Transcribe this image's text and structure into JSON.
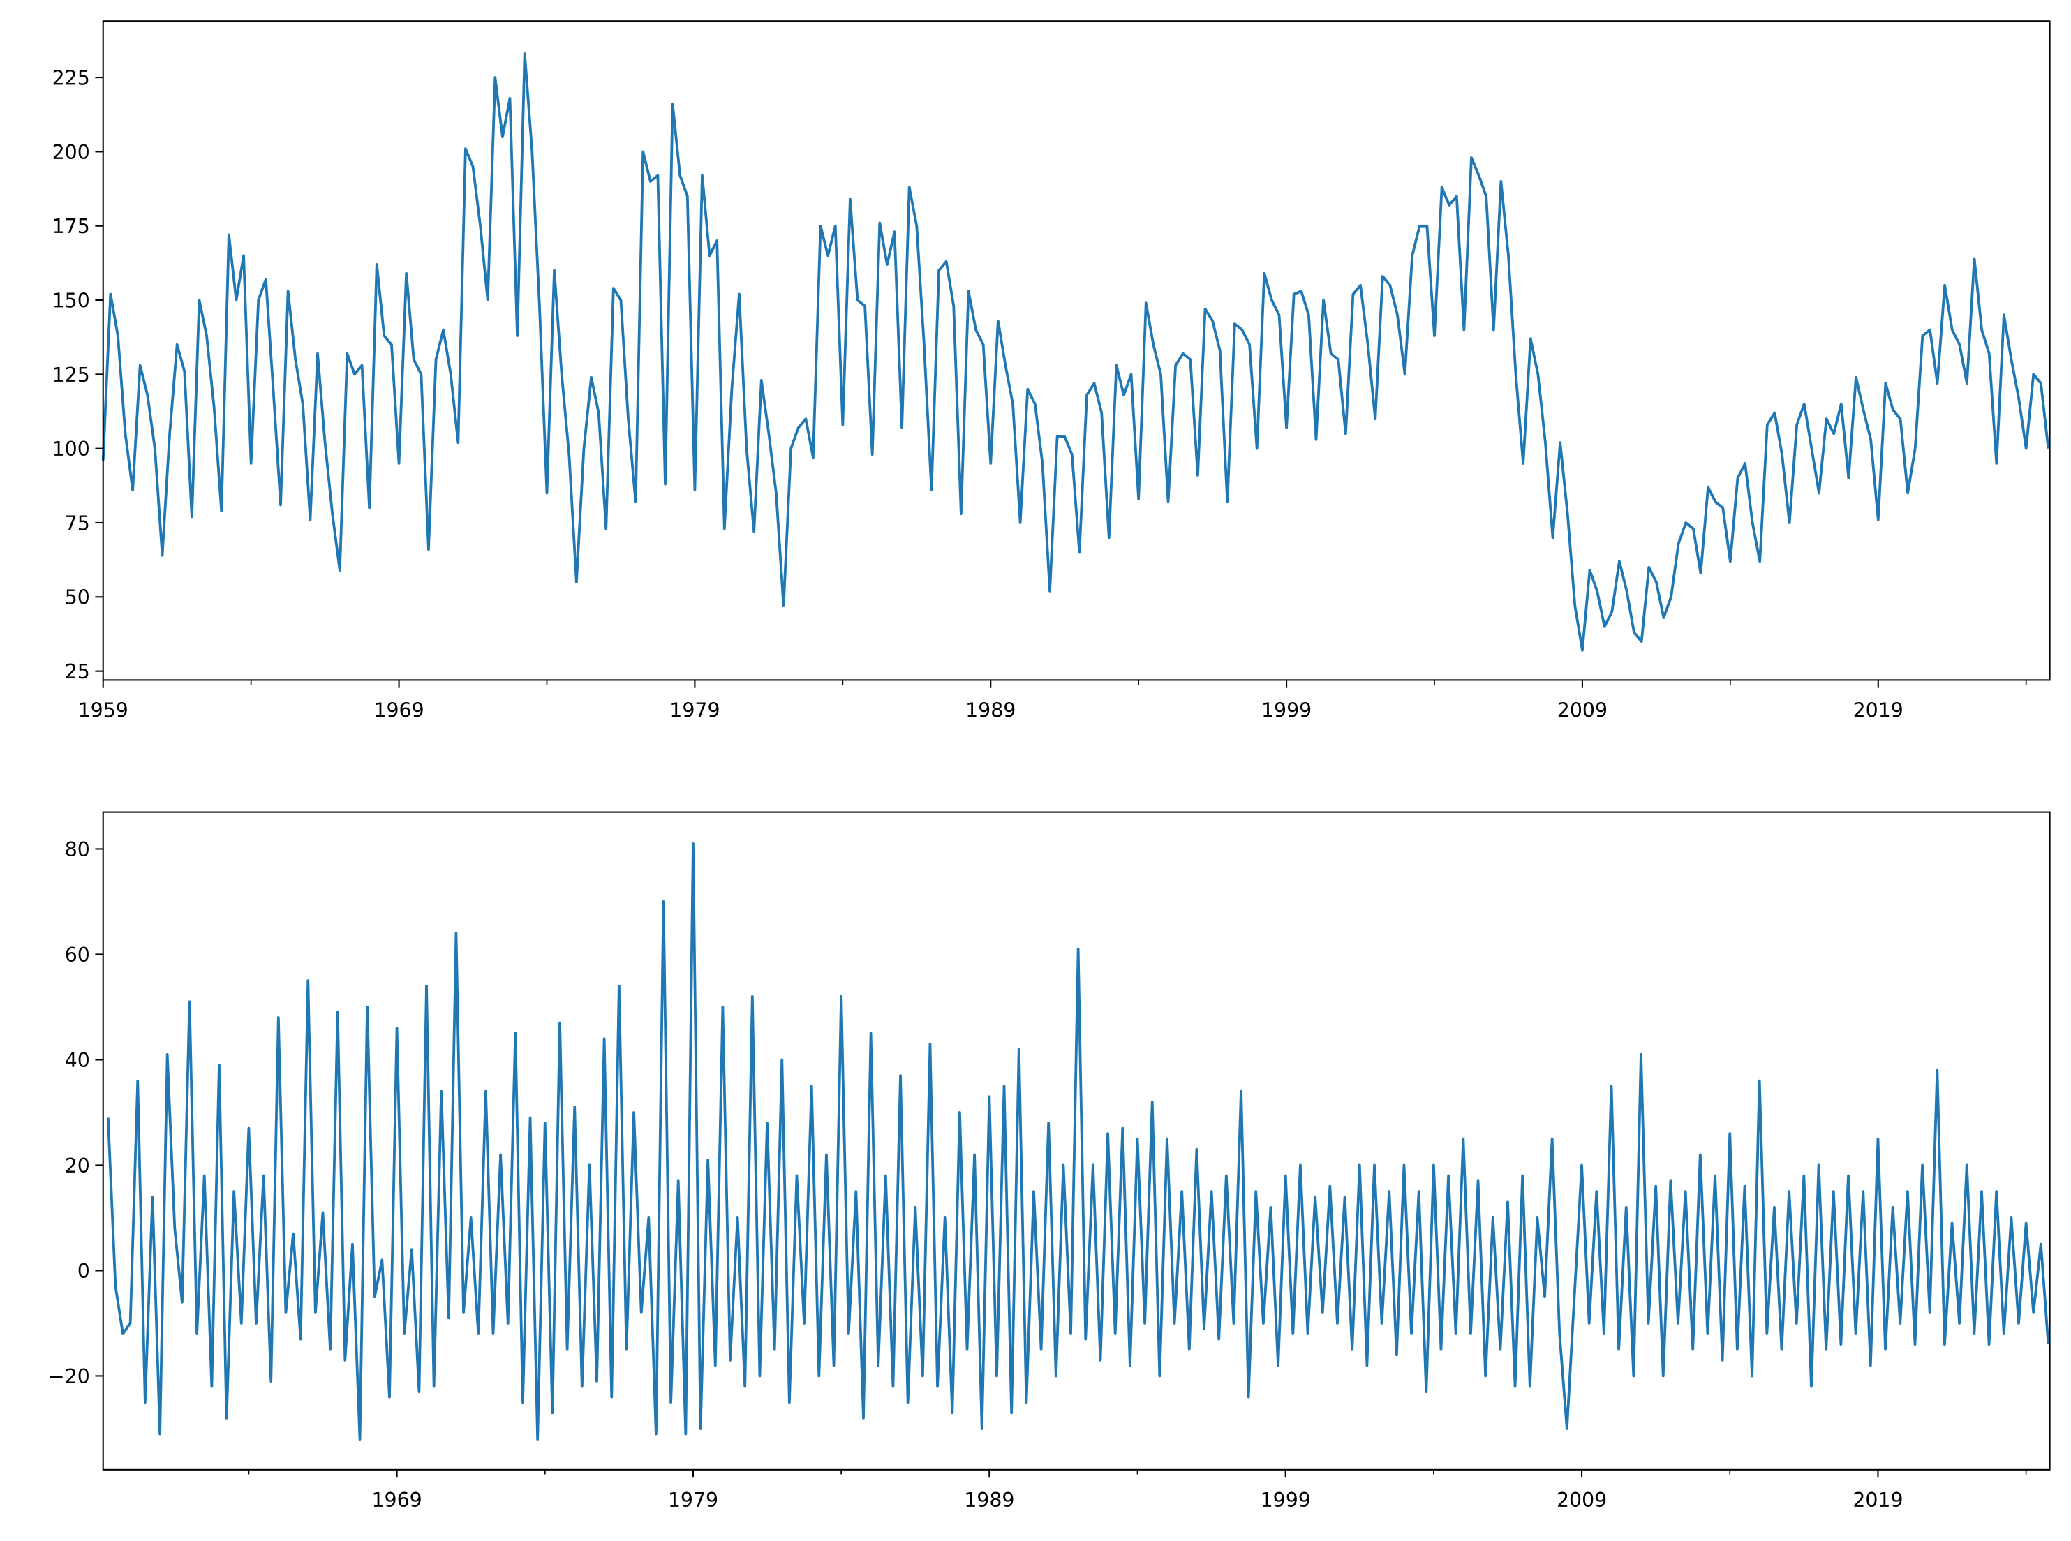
{
  "chart_data": [
    {
      "type": "line",
      "color": "#1f77b4",
      "x": [
        1959,
        1959.25,
        1959.5,
        1959.75,
        1960,
        1960.25,
        1960.5,
        1960.75,
        1961,
        1961.25,
        1961.5,
        1961.75,
        1962,
        1962.25,
        1962.5,
        1962.75,
        1963,
        1963.25,
        1963.5,
        1963.75,
        1964,
        1964.25,
        1964.5,
        1964.75,
        1965,
        1965.25,
        1965.5,
        1965.75,
        1966,
        1966.25,
        1966.5,
        1966.75,
        1967,
        1967.25,
        1967.5,
        1967.75,
        1968,
        1968.25,
        1968.5,
        1968.75,
        1969,
        1969.25,
        1969.5,
        1969.75,
        1970,
        1970.25,
        1970.5,
        1970.75,
        1971,
        1971.25,
        1971.5,
        1971.75,
        1972,
        1972.25,
        1972.5,
        1972.75,
        1973,
        1973.25,
        1973.5,
        1973.75,
        1974,
        1974.25,
        1974.5,
        1974.75,
        1975,
        1975.25,
        1975.5,
        1975.75,
        1976,
        1976.25,
        1976.5,
        1976.75,
        1977,
        1977.25,
        1977.5,
        1977.75,
        1978,
        1978.25,
        1978.5,
        1978.75,
        1979,
        1979.25,
        1979.5,
        1979.75,
        1980,
        1980.25,
        1980.5,
        1980.75,
        1981,
        1981.25,
        1981.5,
        1981.75,
        1982,
        1982.25,
        1982.5,
        1982.75,
        1983,
        1983.25,
        1983.5,
        1983.75,
        1984,
        1984.25,
        1984.5,
        1984.75,
        1985,
        1985.25,
        1985.5,
        1985.75,
        1986,
        1986.25,
        1986.5,
        1986.75,
        1987,
        1987.25,
        1987.5,
        1987.75,
        1988,
        1988.25,
        1988.5,
        1988.75,
        1989,
        1989.25,
        1989.5,
        1989.75,
        1990,
        1990.25,
        1990.5,
        1990.75,
        1991,
        1991.25,
        1991.5,
        1991.75,
        1992,
        1992.25,
        1992.5,
        1992.75,
        1993,
        1993.25,
        1993.5,
        1993.75,
        1994,
        1994.25,
        1994.5,
        1994.75,
        1995,
        1995.25,
        1995.5,
        1995.75,
        1996,
        1996.25,
        1996.5,
        1996.75,
        1997,
        1997.25,
        1997.5,
        1997.75,
        1998,
        1998.25,
        1998.5,
        1998.75,
        1999,
        1999.25,
        1999.5,
        1999.75,
        2000,
        2000.25,
        2000.5,
        2000.75,
        2001,
        2001.25,
        2001.5,
        2001.75,
        2002,
        2002.25,
        2002.5,
        2002.75,
        2003,
        2003.25,
        2003.5,
        2003.75,
        2004,
        2004.25,
        2004.5,
        2004.75,
        2005,
        2005.25,
        2005.5,
        2005.75,
        2006,
        2006.25,
        2006.5,
        2006.75,
        2007,
        2007.25,
        2007.5,
        2007.75,
        2008,
        2008.25,
        2008.5,
        2008.75,
        2009,
        2009.25,
        2009.5,
        2009.75,
        2010,
        2010.25,
        2010.5,
        2010.75,
        2011,
        2011.25,
        2011.5,
        2011.75,
        2012,
        2012.25,
        2012.5,
        2012.75,
        2013,
        2013.25,
        2013.5,
        2013.75,
        2014,
        2014.25,
        2014.5,
        2014.75,
        2015,
        2015.25,
        2015.5,
        2015.75,
        2016,
        2016.25,
        2016.5,
        2016.75,
        2017,
        2017.25,
        2017.5,
        2017.75,
        2018,
        2018.25,
        2018.5,
        2018.75,
        2019,
        2019.25,
        2019.5,
        2019.75,
        2020,
        2020.25,
        2020.5,
        2020.75,
        2021,
        2021.25,
        2021.5,
        2021.75,
        2022,
        2022.25,
        2022.5,
        2022.75,
        2023,
        2023.25,
        2023.5,
        2023.75,
        2024,
        2024.25,
        2024.5,
        2024.75
      ],
      "values": [
        96,
        152,
        138,
        105,
        86,
        128,
        118,
        100,
        64,
        105,
        135,
        126,
        77,
        150,
        138,
        114,
        79,
        172,
        150,
        165,
        95,
        150,
        157,
        120,
        81,
        153,
        130,
        115,
        76,
        132,
        102,
        78,
        59,
        132,
        125,
        128,
        80,
        162,
        138,
        135,
        95,
        159,
        130,
        125,
        66,
        130,
        140,
        125,
        102,
        201,
        195,
        175,
        150,
        225,
        205,
        218,
        138,
        233,
        200,
        148,
        85,
        160,
        125,
        98,
        55,
        100,
        124,
        112,
        73,
        154,
        150,
        110,
        82,
        200,
        190,
        192,
        88,
        216,
        192,
        185,
        86,
        192,
        165,
        170,
        73,
        120,
        152,
        100,
        72,
        123,
        105,
        85,
        47,
        100,
        107,
        110,
        97,
        175,
        165,
        175,
        108,
        184,
        150,
        148,
        98,
        176,
        162,
        173,
        107,
        188,
        175,
        135,
        86,
        160,
        163,
        148,
        78,
        153,
        140,
        135,
        95,
        143,
        128,
        115,
        75,
        120,
        115,
        95,
        52,
        104,
        104,
        98,
        65,
        118,
        122,
        112,
        70,
        128,
        118,
        125,
        83,
        149,
        135,
        125,
        82,
        128,
        132,
        130,
        91,
        147,
        143,
        133,
        82,
        142,
        140,
        135,
        100,
        159,
        150,
        145,
        107,
        152,
        153,
        145,
        103,
        150,
        132,
        130,
        105,
        152,
        155,
        135,
        110,
        158,
        155,
        145,
        125,
        165,
        175,
        175,
        138,
        188,
        182,
        185,
        140,
        198,
        192,
        185,
        140,
        190,
        165,
        125,
        95,
        137,
        125,
        102,
        70,
        102,
        78,
        47,
        32,
        59,
        52,
        40,
        45,
        62,
        52,
        38,
        35,
        60,
        55,
        43,
        50,
        68,
        75,
        73,
        58,
        87,
        82,
        80,
        62,
        90,
        95,
        75,
        62,
        108,
        112,
        98,
        75,
        108,
        115,
        100,
        85,
        110,
        105,
        115,
        90,
        124,
        113,
        103,
        76,
        122,
        113,
        110,
        85,
        100,
        138,
        140,
        122,
        155,
        140,
        135,
        122,
        164,
        140,
        132,
        95,
        145,
        130,
        117,
        100,
        125,
        122,
        100
      ],
      "xlim": [
        1959,
        2024.8
      ],
      "xticks": [
        1959,
        1969,
        1979,
        1989,
        1999,
        2009,
        2019
      ],
      "xminor": [
        1964,
        1974,
        1984,
        1994,
        2004,
        2014,
        2024
      ],
      "ylim": [
        22,
        244
      ],
      "yticks": [
        25,
        50,
        75,
        100,
        125,
        150,
        175,
        200,
        225
      ]
    },
    {
      "type": "line",
      "color": "#1f77b4",
      "x": [
        1959.25,
        1959.5,
        1959.75,
        1960,
        1960.25,
        1960.5,
        1960.75,
        1961,
        1961.25,
        1961.5,
        1961.75,
        1962,
        1962.25,
        1962.5,
        1962.75,
        1963,
        1963.25,
        1963.5,
        1963.75,
        1964,
        1964.25,
        1964.5,
        1964.75,
        1965,
        1965.25,
        1965.5,
        1965.75,
        1966,
        1966.25,
        1966.5,
        1966.75,
        1967,
        1967.25,
        1967.5,
        1967.75,
        1968,
        1968.25,
        1968.5,
        1968.75,
        1969,
        1969.25,
        1969.5,
        1969.75,
        1970,
        1970.25,
        1970.5,
        1970.75,
        1971,
        1971.25,
        1971.5,
        1971.75,
        1972,
        1972.25,
        1972.5,
        1972.75,
        1973,
        1973.25,
        1973.5,
        1973.75,
        1974,
        1974.25,
        1974.5,
        1974.75,
        1975,
        1975.25,
        1975.5,
        1975.75,
        1976,
        1976.25,
        1976.5,
        1976.75,
        1977,
        1977.25,
        1977.5,
        1977.75,
        1978,
        1978.25,
        1978.5,
        1978.75,
        1979,
        1979.25,
        1979.5,
        1979.75,
        1980,
        1980.25,
        1980.5,
        1980.75,
        1981,
        1981.25,
        1981.5,
        1981.75,
        1982,
        1982.25,
        1982.5,
        1982.75,
        1983,
        1983.25,
        1983.5,
        1983.75,
        1984,
        1984.25,
        1984.5,
        1984.75,
        1985,
        1985.25,
        1985.5,
        1985.75,
        1986,
        1986.25,
        1986.5,
        1986.75,
        1987,
        1987.25,
        1987.5,
        1987.75,
        1988,
        1988.25,
        1988.5,
        1988.75,
        1989,
        1989.25,
        1989.5,
        1989.75,
        1990,
        1990.25,
        1990.5,
        1990.75,
        1991,
        1991.25,
        1991.5,
        1991.75,
        1992,
        1992.25,
        1992.5,
        1992.75,
        1993,
        1993.25,
        1993.5,
        1993.75,
        1994,
        1994.25,
        1994.5,
        1994.75,
        1995,
        1995.25,
        1995.5,
        1995.75,
        1996,
        1996.25,
        1996.5,
        1996.75,
        1997,
        1997.25,
        1997.5,
        1997.75,
        1998,
        1998.25,
        1998.5,
        1998.75,
        1999,
        1999.25,
        1999.5,
        1999.75,
        2000,
        2000.25,
        2000.5,
        2000.75,
        2001,
        2001.25,
        2001.5,
        2001.75,
        2002,
        2002.25,
        2002.5,
        2002.75,
        2003,
        2003.25,
        2003.5,
        2003.75,
        2004,
        2004.25,
        2004.5,
        2004.75,
        2005,
        2005.25,
        2005.5,
        2005.75,
        2006,
        2006.25,
        2006.5,
        2006.75,
        2007,
        2007.25,
        2007.5,
        2007.75,
        2008,
        2008.25,
        2008.5,
        2008.75,
        2009,
        2009.25,
        2009.5,
        2009.75,
        2010,
        2010.25,
        2010.5,
        2010.75,
        2011,
        2011.25,
        2011.5,
        2011.75,
        2012,
        2012.25,
        2012.5,
        2012.75,
        2013,
        2013.25,
        2013.5,
        2013.75,
        2014,
        2014.25,
        2014.5,
        2014.75,
        2015,
        2015.25,
        2015.5,
        2015.75,
        2016,
        2016.25,
        2016.5,
        2016.75,
        2017,
        2017.25,
        2017.5,
        2017.75,
        2018,
        2018.25,
        2018.5,
        2018.75,
        2019,
        2019.25,
        2019.5,
        2019.75,
        2020,
        2020.25,
        2020.5,
        2020.75,
        2021,
        2021.25,
        2021.5,
        2021.75,
        2022,
        2022.25,
        2022.5,
        2022.75,
        2023,
        2023.25,
        2023.5,
        2023.75,
        2024,
        2024.25,
        2024.5,
        2024.75
      ],
      "values": [
        29,
        -3,
        -12,
        -10,
        36,
        -25,
        14,
        -31,
        41,
        8,
        -6,
        51,
        -12,
        18,
        -22,
        39,
        -28,
        15,
        -10,
        27,
        -10,
        18,
        -21,
        48,
        -8,
        7,
        -13,
        55,
        -8,
        11,
        -15,
        49,
        -17,
        5,
        -32,
        50,
        -5,
        2,
        -24,
        46,
        -12,
        4,
        -23,
        54,
        -22,
        34,
        -9,
        64,
        -8,
        10,
        -12,
        34,
        -12,
        22,
        -10,
        45,
        -25,
        29,
        -32,
        28,
        -27,
        47,
        -15,
        31,
        -22,
        20,
        -21,
        44,
        -24,
        54,
        -15,
        30,
        -8,
        10,
        -31,
        70,
        -25,
        17,
        -31,
        81,
        -30,
        21,
        -18,
        50,
        -17,
        10,
        -22,
        52,
        -20,
        28,
        -15,
        40,
        -25,
        18,
        -10,
        35,
        -20,
        22,
        -18,
        52,
        -12,
        15,
        -28,
        45,
        -18,
        18,
        -22,
        37,
        -25,
        12,
        -20,
        43,
        -22,
        10,
        -27,
        30,
        -15,
        22,
        -30,
        33,
        -20,
        35,
        -27,
        42,
        -25,
        15,
        -15,
        28,
        -20,
        20,
        -12,
        61,
        -13,
        20,
        -17,
        26,
        -12,
        27,
        -18,
        25,
        -10,
        32,
        -20,
        25,
        -10,
        15,
        -15,
        23,
        -11,
        15,
        -13,
        18,
        -10,
        34,
        -24,
        15,
        -10,
        12,
        -18,
        18,
        -12,
        20,
        -12,
        14,
        -8,
        16,
        -10,
        14,
        -15,
        20,
        -18,
        20,
        -10,
        15,
        -16,
        20,
        -12,
        15,
        -23,
        20,
        -15,
        18,
        -12,
        25,
        -12,
        17,
        -20,
        10,
        -15,
        13,
        -22,
        18,
        -22,
        10,
        -5,
        25,
        -12,
        -30,
        -5,
        20,
        -10,
        15,
        -12,
        35,
        -15,
        12,
        -20,
        41,
        -10,
        16,
        -20,
        17,
        -10,
        15,
        -15,
        22,
        -12,
        18,
        -17,
        26,
        -15,
        16,
        -20,
        36,
        -12,
        12,
        -15,
        15,
        -10,
        18,
        -22,
        20,
        -15,
        15,
        -14,
        18,
        -12,
        15,
        -18,
        25,
        -15,
        12,
        -10,
        15,
        -14,
        20,
        -8,
        38,
        -14,
        9,
        -10,
        20,
        -12,
        15,
        -14,
        15,
        -12,
        10,
        -10,
        9,
        -8,
        5,
        -14
      ],
      "xlim": [
        1959.083,
        2024.8
      ],
      "xticks": [
        1969,
        1979,
        1989,
        1999,
        2009,
        2019
      ],
      "xminor": [
        1964,
        1974,
        1984,
        1994,
        2004,
        2014,
        2024
      ],
      "ylim": [
        -37.8,
        87
      ],
      "yticks": [
        {
          "value": -20,
          "label": "−20"
        },
        0,
        20,
        40,
        60,
        80
      ]
    }
  ]
}
